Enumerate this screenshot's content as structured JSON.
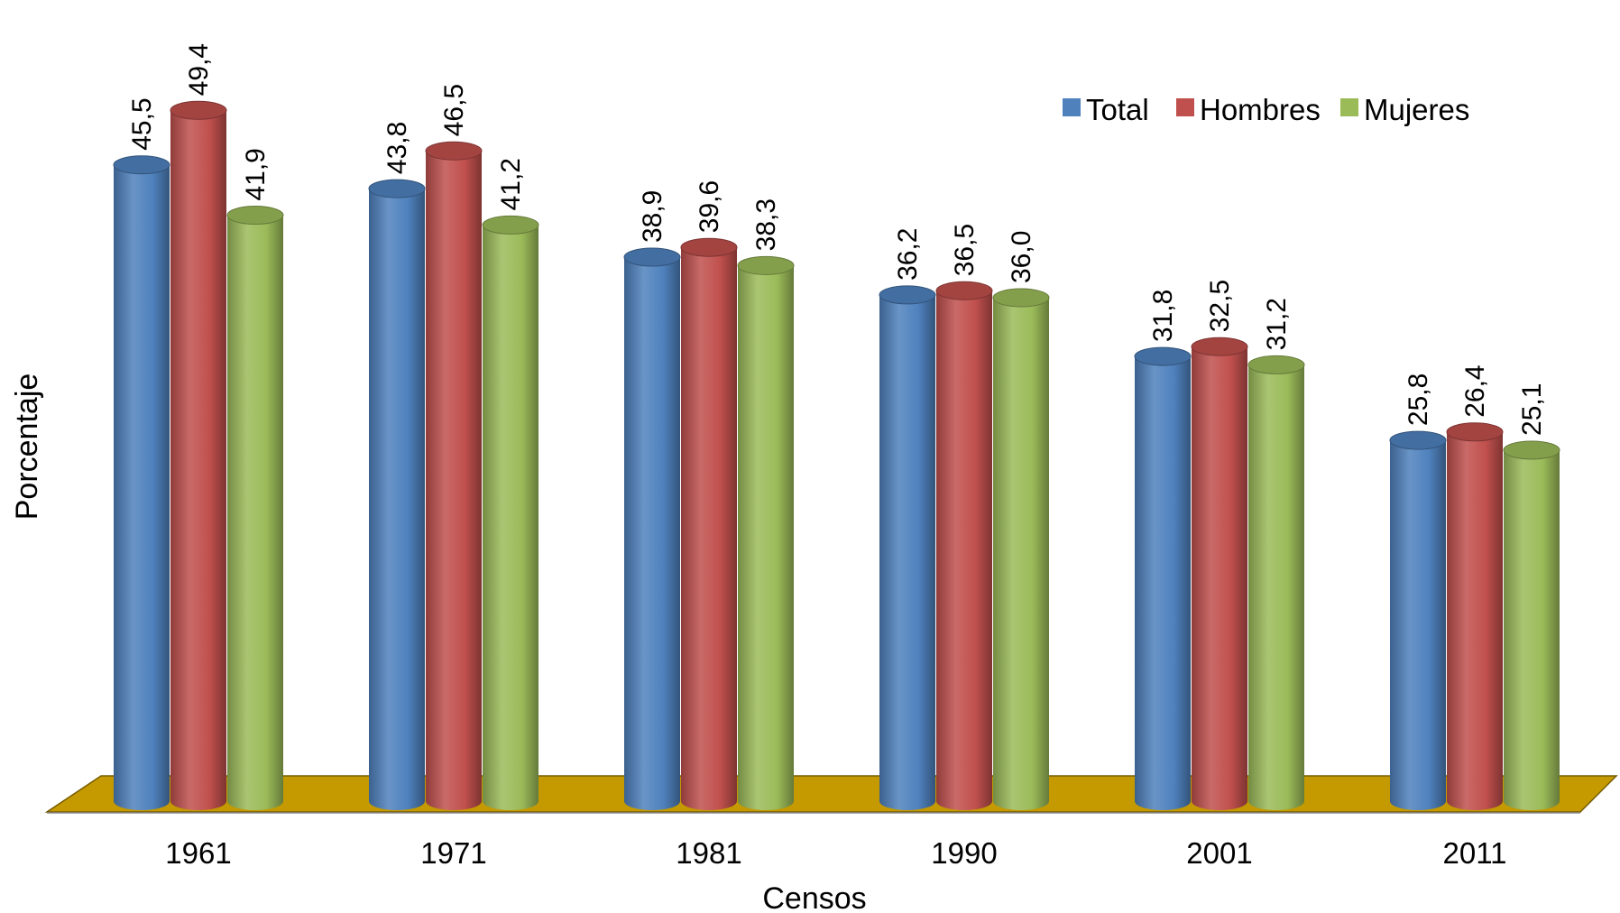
{
  "chart_data": {
    "type": "bar",
    "xlabel": "Censos",
    "ylabel": "Porcentaje",
    "categories": [
      "1961",
      "1971",
      "1981",
      "1990",
      "2001",
      "2011"
    ],
    "ylim": [
      0,
      55
    ],
    "grid": false,
    "legend_position": "top-right",
    "series": [
      {
        "name": "Total",
        "color": "#4F81BD",
        "values": [
          45.5,
          43.8,
          38.9,
          36.2,
          31.8,
          25.8
        ],
        "labels": [
          "45,5",
          "43,8",
          "38,9",
          "36,2",
          "31,8",
          "25,8"
        ]
      },
      {
        "name": "Hombres",
        "color": "#C0504D",
        "values": [
          49.4,
          46.5,
          39.6,
          36.5,
          32.5,
          26.4
        ],
        "labels": [
          "49,4",
          "46,5",
          "39,6",
          "36,5",
          "32,5",
          "26,4"
        ]
      },
      {
        "name": "Mujeres",
        "color": "#9BBB59",
        "values": [
          41.9,
          41.2,
          38.3,
          36.0,
          31.2,
          25.1
        ],
        "labels": [
          "41,9",
          "41,2",
          "38,3",
          "36,0",
          "31,2",
          "25,1"
        ]
      }
    ],
    "floor_color": "#C59A00"
  }
}
